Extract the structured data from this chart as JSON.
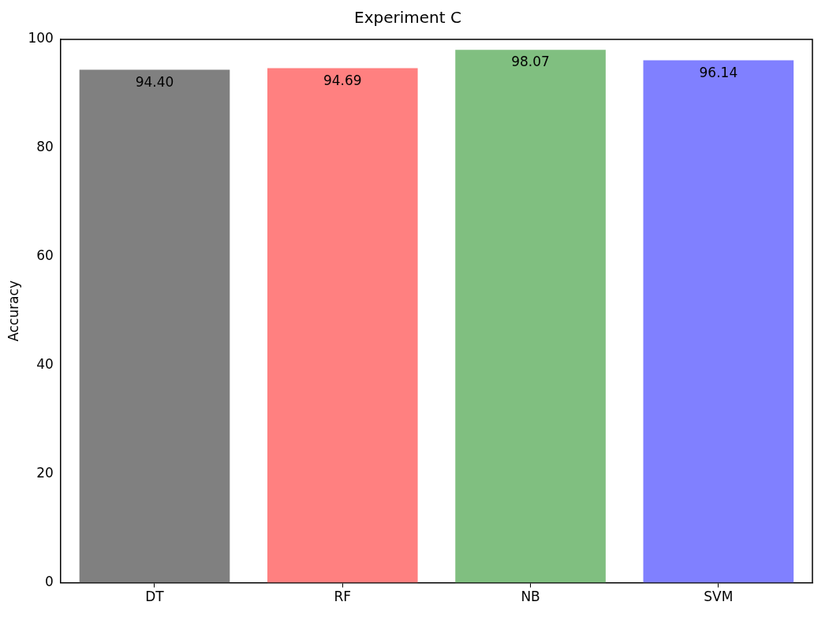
{
  "chart_data": {
    "type": "bar",
    "title": "Experiment C",
    "ylabel": "Accuracy",
    "categories": [
      "DT",
      "RF",
      "NB",
      "SVM"
    ],
    "values": [
      94.4,
      94.69,
      98.07,
      96.14
    ],
    "colors": [
      "#808080",
      "#ff8080",
      "#80bf80",
      "#8080ff"
    ],
    "value_labels": [
      "94.40",
      "94.69",
      "98.07",
      "96.14"
    ],
    "ylim": [
      0,
      100
    ],
    "yticks": [
      0,
      20,
      40,
      60,
      80,
      100
    ],
    "grid": false,
    "legend": false
  }
}
